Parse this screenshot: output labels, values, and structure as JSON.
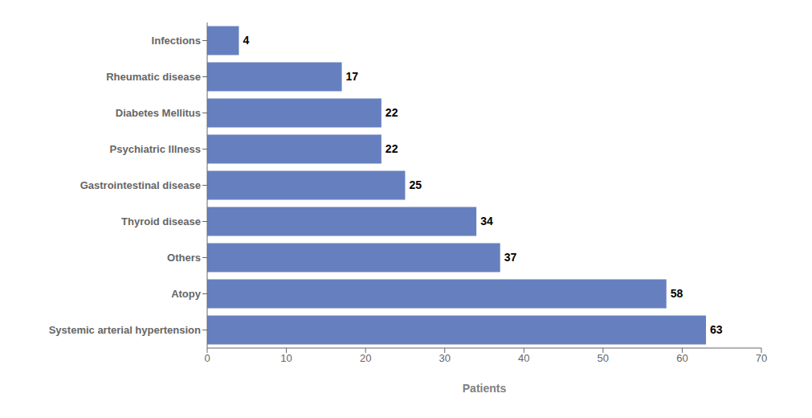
{
  "chart_data": {
    "type": "bar",
    "orientation": "horizontal",
    "categories": [
      "Systemic arterial hypertension",
      "Atopy",
      "Others",
      "Thyroid disease",
      "Gastrointestinal disease",
      "Psychiatric Illness",
      "Diabetes Mellitus",
      "Rheumatic disease",
      "Infections"
    ],
    "values": [
      63,
      58,
      37,
      34,
      25,
      22,
      22,
      17,
      4
    ],
    "color": "#6680BF",
    "xlabel": "Patients",
    "xlim": [
      0,
      70
    ],
    "xticks": [
      0,
      10,
      20,
      30,
      40,
      50,
      60,
      70
    ],
    "data_labels": true,
    "grid": false
  }
}
